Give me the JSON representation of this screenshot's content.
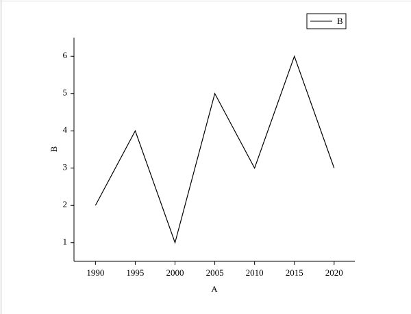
{
  "chart_data": {
    "type": "line",
    "x": [
      1990,
      1995,
      2000,
      2005,
      2010,
      2015,
      2020
    ],
    "series": [
      {
        "name": "B",
        "color": "#000000",
        "values": [
          2,
          4,
          1,
          5,
          3,
          6,
          3
        ]
      }
    ],
    "x_label": "A",
    "y_label": "B",
    "xlim": [
      1987.3,
      2022.6
    ],
    "xticks": [
      1990,
      1995,
      2000,
      2005,
      2010,
      2015,
      2020
    ],
    "ylim": [
      0.5,
      6.5
    ],
    "yticks": [
      1,
      2,
      3,
      4,
      5,
      6
    ],
    "grid": false,
    "legend": "upper-right"
  }
}
